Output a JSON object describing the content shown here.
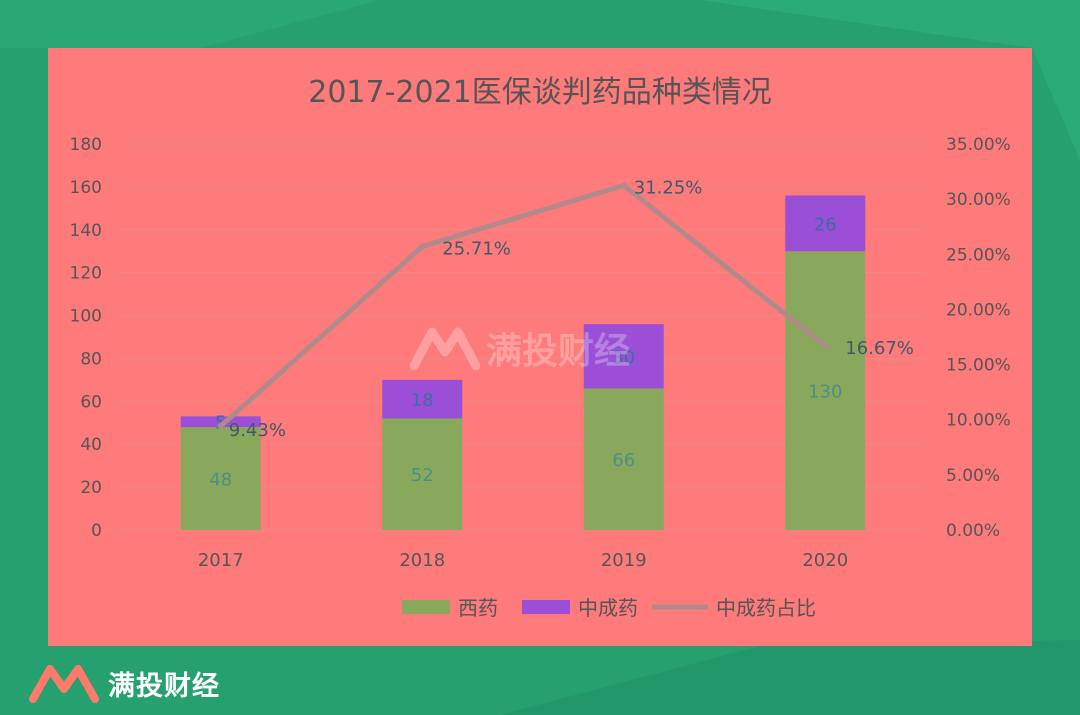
{
  "brand": {
    "name": "满投财经",
    "watermark": "满投财经"
  },
  "colors": {
    "background": "#25a06e",
    "panel": "#ff7a7a",
    "western": "#8aa85c",
    "tcm": "#9b4fd6",
    "ratio_line": "#b08a8a",
    "text": "#555555",
    "grid": "#e88a8a"
  },
  "chart_data": {
    "type": "bar",
    "stacked": true,
    "title": "2017-2021医保谈判药品种类情况",
    "categories": [
      "2017",
      "2018",
      "2019",
      "2020"
    ],
    "series": [
      {
        "name": "西药",
        "kind": "bar",
        "values": [
          48,
          52,
          66,
          130
        ],
        "labels": [
          "48",
          "52",
          "66",
          "130"
        ]
      },
      {
        "name": "中成药",
        "kind": "bar",
        "values": [
          5,
          18,
          30,
          26
        ],
        "labels": [
          "5",
          "18",
          "30",
          "26"
        ]
      },
      {
        "name": "中成药占比",
        "kind": "line",
        "axis": "right",
        "values": [
          9.43,
          25.71,
          31.25,
          16.67
        ],
        "labels": [
          "9.43%",
          "25.71%",
          "31.25%",
          "16.67%"
        ]
      }
    ],
    "y_left": {
      "ylim": [
        0,
        180
      ],
      "ticks": [
        "0",
        "20",
        "40",
        "60",
        "80",
        "100",
        "120",
        "140",
        "160",
        "180"
      ]
    },
    "y_right": {
      "ylim": [
        0,
        35
      ],
      "ticks": [
        "0.00%",
        "5.00%",
        "10.00%",
        "15.00%",
        "20.00%",
        "25.00%",
        "30.00%",
        "35.00%"
      ]
    },
    "grid": true,
    "legend": "bottom"
  }
}
